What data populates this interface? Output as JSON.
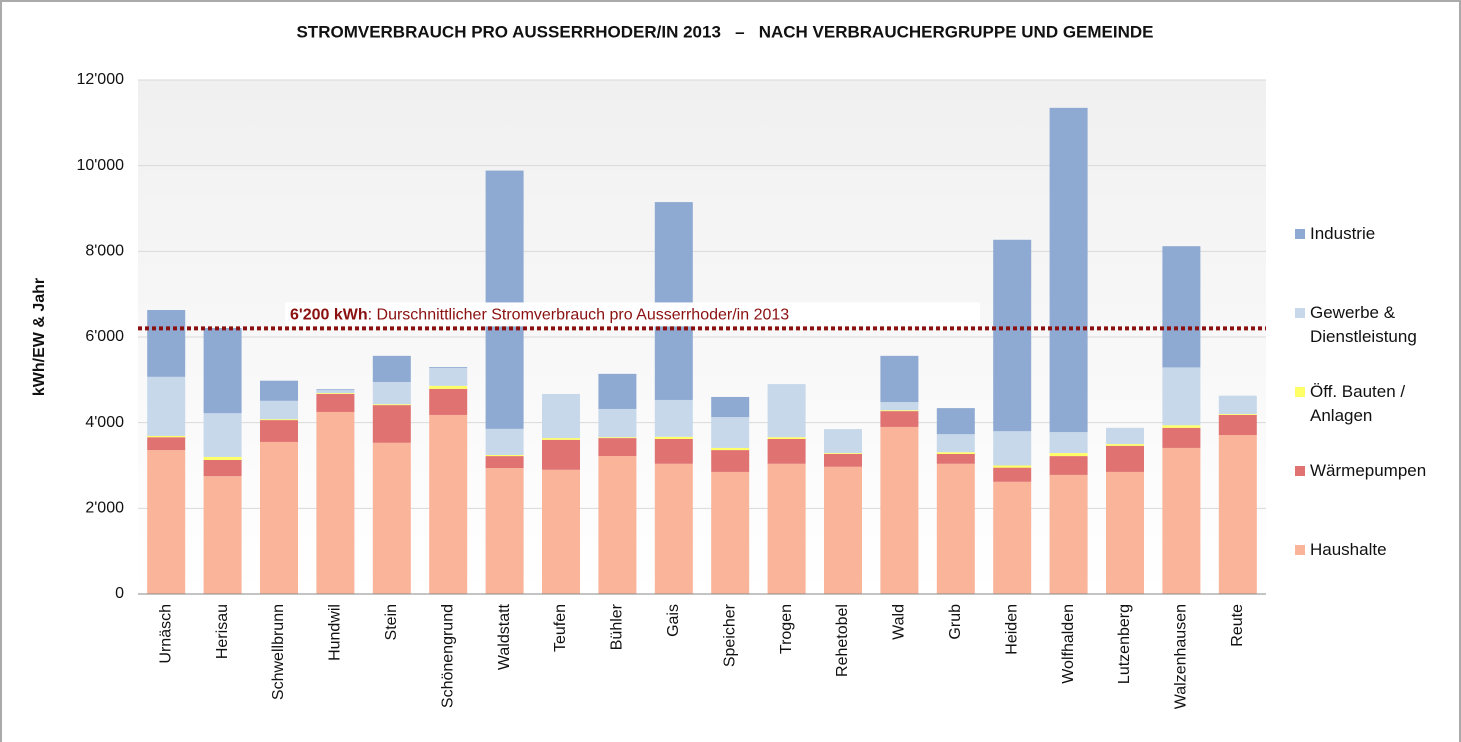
{
  "chart_data": {
    "type": "stacked_bar",
    "title": "STROMVERBRAUCH PRO AUSSERRHODER/IN 2013   –   NACH VERBRAUCHERGRUPPE UND GEMEINDE",
    "y_label": "kWh/EW & Jahr",
    "categories": [
      "Urnäsch",
      "Herisau",
      "Schwellbrunn",
      "Hundwil",
      "Stein",
      "Schönengrund",
      "Waldstatt",
      "Teufen",
      "Bühler",
      "Gais",
      "Speicher",
      "Trogen",
      "Rehetobel",
      "Wald",
      "Grub",
      "Heiden",
      "Wolfhalden",
      "Lutzenberg",
      "Walzenhausen",
      "Reute"
    ],
    "series": [
      {
        "name": "Haushalte",
        "color": "#f9b49a",
        "values": [
          3360,
          2750,
          3550,
          4250,
          3530,
          4180,
          2940,
          2900,
          3220,
          3040,
          2850,
          3040,
          2970,
          3900,
          3040,
          2620,
          2780,
          2850,
          3410,
          3710
        ]
      },
      {
        "name": "Wärmepumpen",
        "color": "#e07272",
        "values": [
          300,
          380,
          510,
          420,
          880,
          610,
          280,
          700,
          420,
          580,
          510,
          580,
          300,
          370,
          230,
          330,
          440,
          610,
          470,
          470
        ]
      },
      {
        "name": "Öff. Bauten / Anlagen",
        "color": "#ffff66",
        "values": [
          30,
          70,
          20,
          20,
          20,
          70,
          25,
          40,
          20,
          50,
          50,
          40,
          20,
          20,
          40,
          50,
          70,
          40,
          60,
          20
        ]
      },
      {
        "name": "Gewerbe & Dienstleistung",
        "color": "#c6d8ea",
        "values": [
          1380,
          1020,
          430,
          70,
          520,
          420,
          610,
          1030,
          660,
          860,
          720,
          1240,
          560,
          190,
          420,
          800,
          490,
          380,
          1350,
          430
        ]
      },
      {
        "name": "Industrie",
        "color": "#8eaad2",
        "values": [
          1560,
          1990,
          470,
          20,
          610,
          20,
          6030,
          0,
          820,
          4620,
          470,
          0,
          0,
          1080,
          610,
          4470,
          7570,
          0,
          2830,
          0
        ]
      }
    ],
    "average": {
      "value": 6200,
      "label": "6'200 kWh",
      "text": ": Durschnittlicher Stromverbrauch pro Ausserrhoder/in 2013",
      "color": "#8b1010"
    },
    "ylim": [
      0,
      12000
    ],
    "yticks": [
      0,
      {
        "value": 2000,
        "label": "2'000"
      },
      {
        "value": 4000,
        "label": "4'000"
      },
      {
        "value": 6000,
        "label": "6'000"
      },
      {
        "value": 8000,
        "label": "8'000"
      },
      {
        "value": 10000,
        "label": "10'000"
      },
      {
        "value": 12000,
        "label": "12'000"
      }
    ],
    "grid": true
  }
}
